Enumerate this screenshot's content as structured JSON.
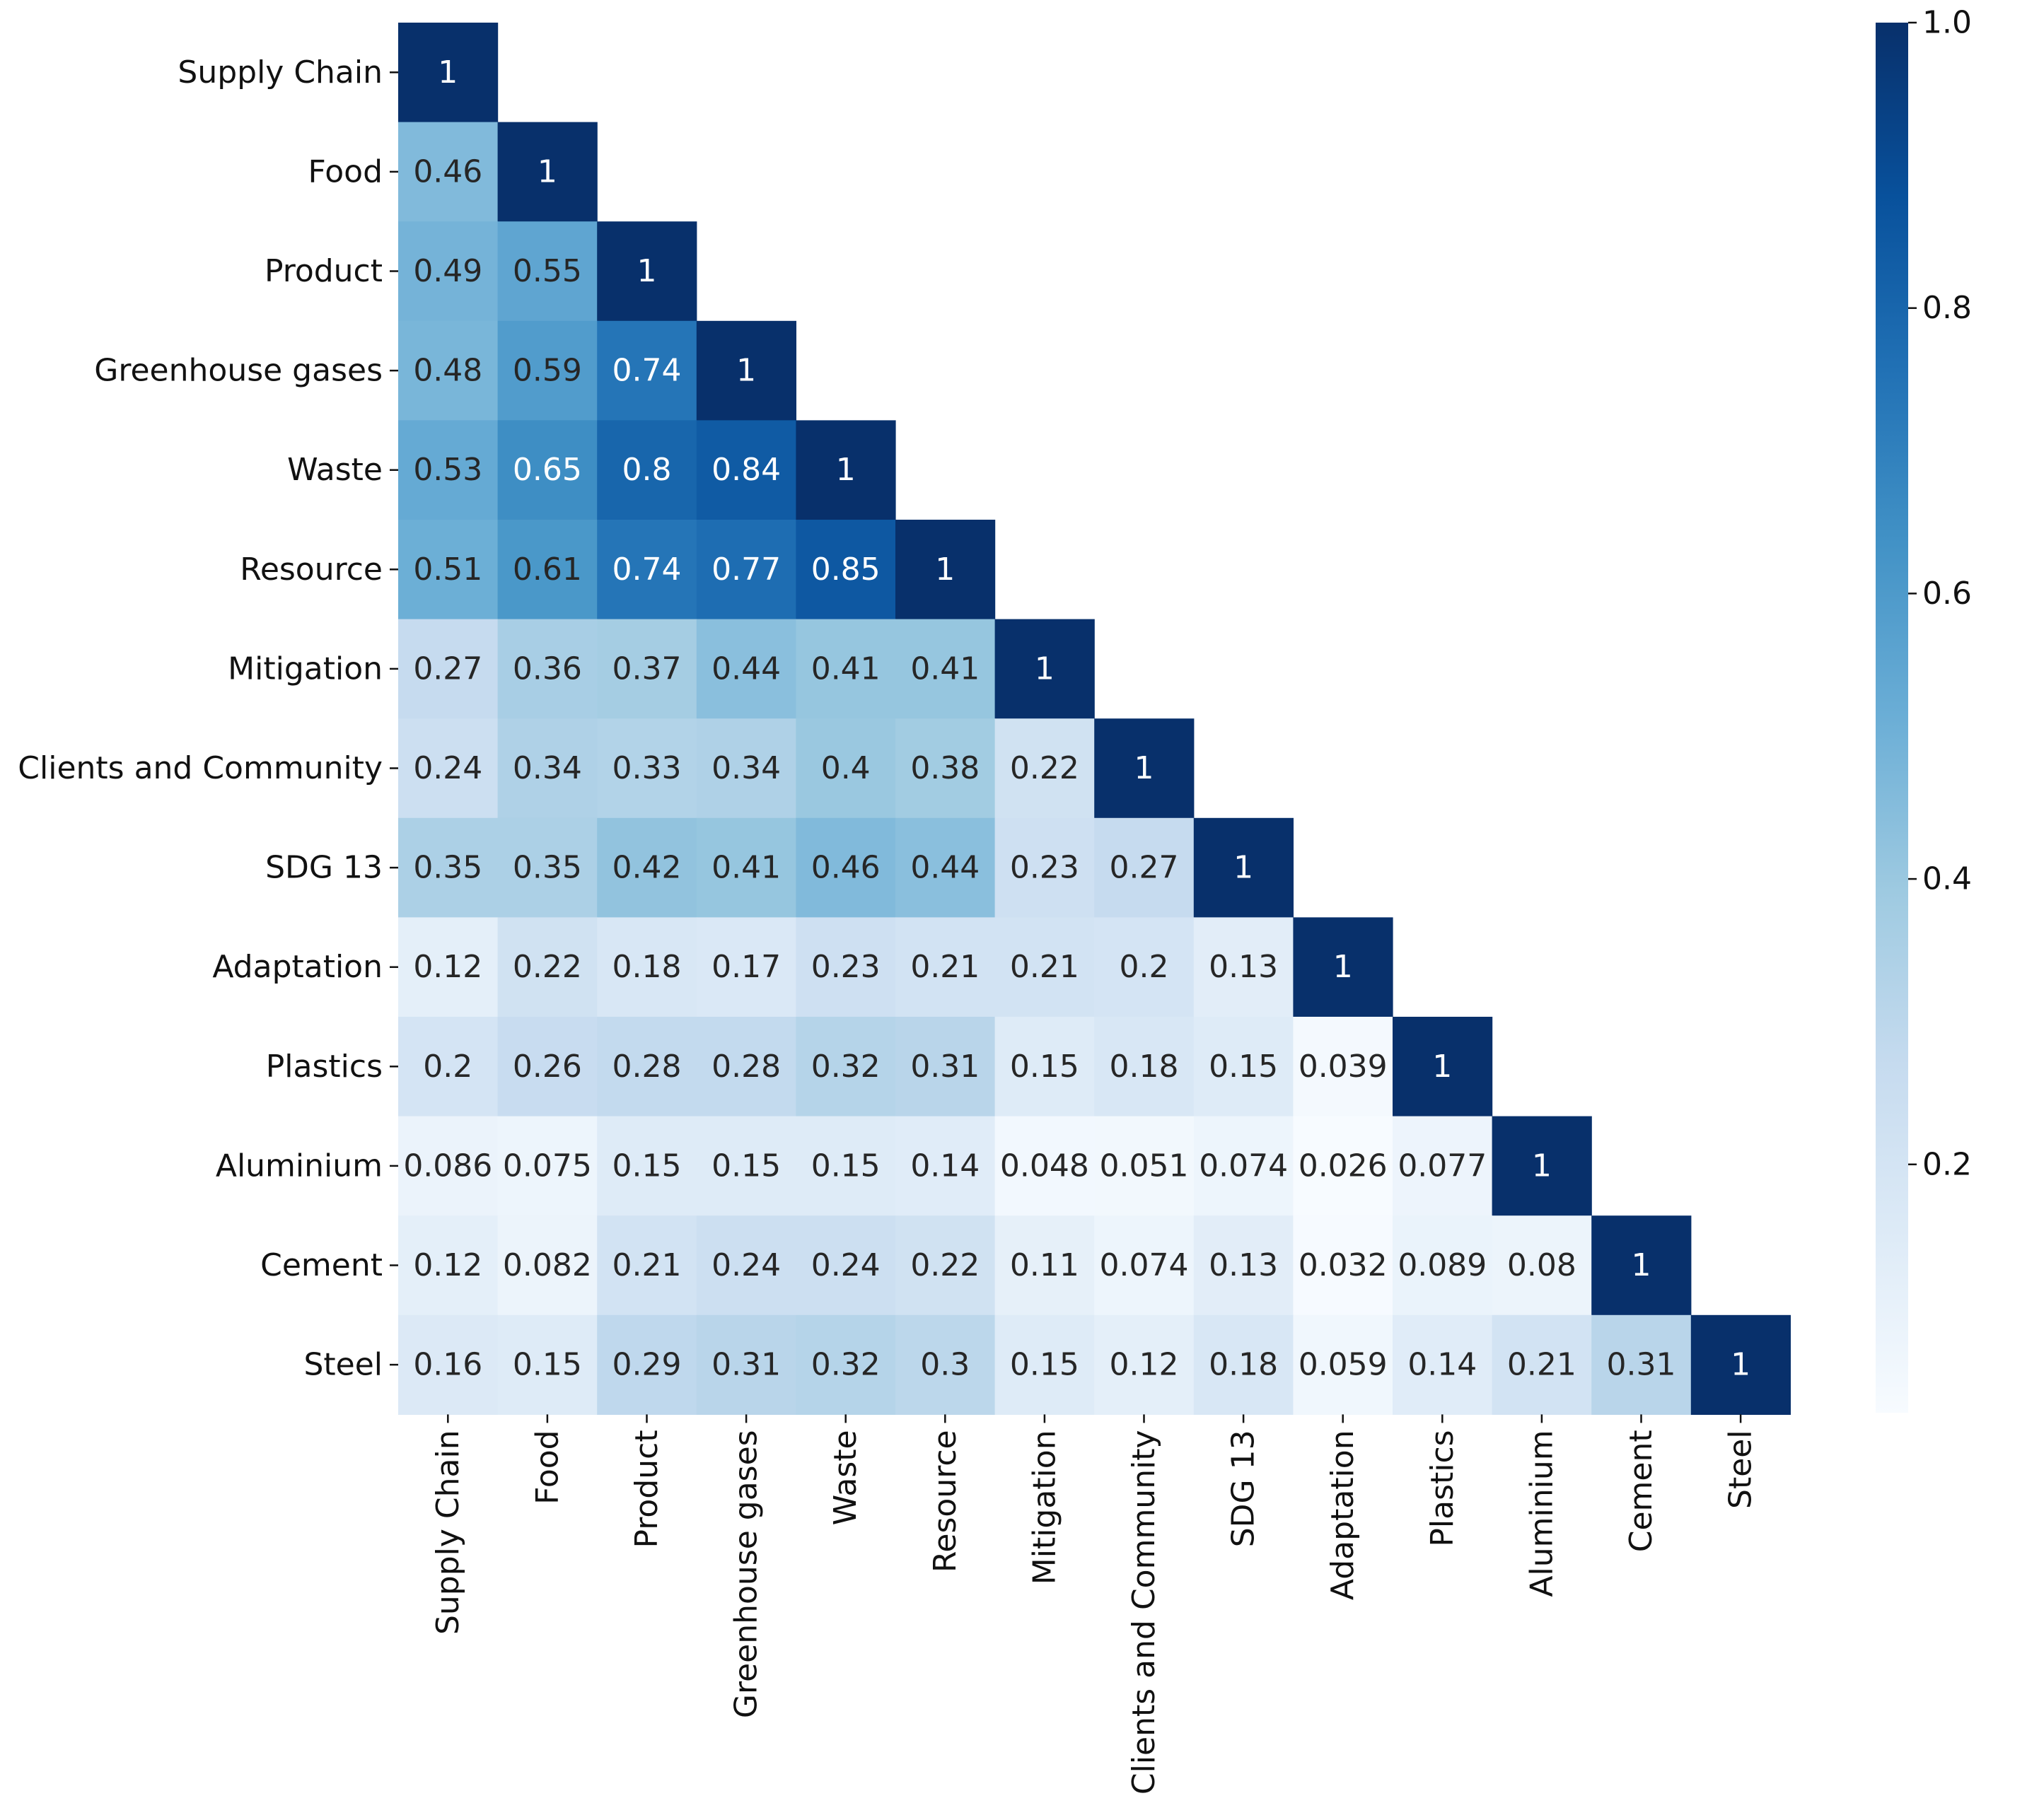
{
  "chart_data": {
    "type": "heatmap",
    "title": "",
    "xlabel": "",
    "ylabel": "",
    "colormap": "Blues",
    "labels": [
      "Supply Chain",
      "Food",
      "Product",
      "Greenhouse gases",
      "Waste",
      "Resource",
      "Mitigation",
      "Clients and Community",
      "SDG 13",
      "Adaptation",
      "Plastics",
      "Aluminium",
      "Cement",
      "Steel"
    ],
    "values": [
      [
        1
      ],
      [
        0.46,
        1
      ],
      [
        0.49,
        0.55,
        1
      ],
      [
        0.48,
        0.59,
        0.74,
        1
      ],
      [
        0.53,
        0.65,
        0.8,
        0.84,
        1
      ],
      [
        0.51,
        0.61,
        0.74,
        0.77,
        0.85,
        1
      ],
      [
        0.27,
        0.36,
        0.37,
        0.44,
        0.41,
        0.41,
        1
      ],
      [
        0.24,
        0.34,
        0.33,
        0.34,
        0.4,
        0.38,
        0.22,
        1
      ],
      [
        0.35,
        0.35,
        0.42,
        0.41,
        0.46,
        0.44,
        0.23,
        0.27,
        1
      ],
      [
        0.12,
        0.22,
        0.18,
        0.17,
        0.23,
        0.21,
        0.21,
        0.2,
        0.13,
        1
      ],
      [
        0.2,
        0.26,
        0.28,
        0.28,
        0.32,
        0.31,
        0.15,
        0.18,
        0.15,
        0.039,
        1
      ],
      [
        0.086,
        0.075,
        0.15,
        0.15,
        0.15,
        0.14,
        0.048,
        0.051,
        0.074,
        0.026,
        0.077,
        1
      ],
      [
        0.12,
        0.082,
        0.21,
        0.24,
        0.24,
        0.22,
        0.11,
        0.074,
        0.13,
        0.032,
        0.089,
        0.08,
        1
      ],
      [
        0.16,
        0.15,
        0.29,
        0.31,
        0.32,
        0.3,
        0.15,
        0.12,
        0.18,
        0.059,
        0.14,
        0.21,
        0.31,
        1
      ]
    ],
    "colorbar": {
      "min": 0.026,
      "max": 1.0,
      "ticks": [
        0.2,
        0.4,
        0.6,
        0.8,
        1.0
      ],
      "tick_labels": [
        "0.2",
        "0.4",
        "0.6",
        "0.8",
        "1.0"
      ]
    },
    "color_stops": [
      "#f7fbff",
      "#deebf7",
      "#c6dbef",
      "#9ecae1",
      "#6baed6",
      "#4292c6",
      "#2171b5",
      "#08519c",
      "#08306b"
    ]
  }
}
